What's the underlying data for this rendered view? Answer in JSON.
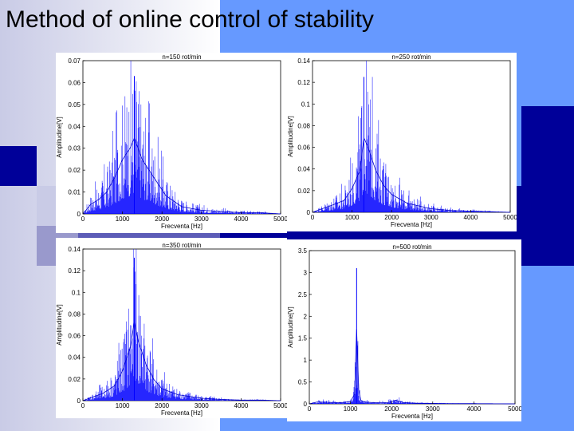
{
  "slide": {
    "title": "Method of online control of stability"
  },
  "chart_data": [
    {
      "type": "line",
      "title": "n=150 rot/min",
      "xlabel": "Frecventa [Hz]",
      "ylabel": "Amplitudine[V]",
      "xlim": [
        0,
        5000
      ],
      "ylim": [
        0,
        0.07
      ],
      "xticks": [
        "0",
        "1000",
        "2000",
        "3000",
        "4000",
        "5000"
      ],
      "yticks": [
        "0",
        "0.01",
        "0.02",
        "0.03",
        "0.04",
        "0.05",
        "0.06",
        "0.07"
      ],
      "series": [
        {
          "color": "#0000ff",
          "x": [
            0,
            200,
            400,
            600,
            800,
            1000,
            1200,
            1300,
            1500,
            1800,
            2100,
            2500,
            3000,
            3500,
            4000,
            4500,
            5000
          ],
          "y": [
            0.0,
            0.008,
            0.012,
            0.018,
            0.03,
            0.045,
            0.055,
            0.063,
            0.045,
            0.03,
            0.015,
            0.006,
            0.003,
            0.002,
            0.001,
            0.001,
            0.0
          ]
        }
      ],
      "grid": false
    },
    {
      "type": "line",
      "title": "n=250 rot/min",
      "xlabel": "Frecventa [Hz]",
      "ylabel": "Amplitudine[V]",
      "xlim": [
        0,
        5000
      ],
      "ylim": [
        0,
        0.14
      ],
      "xticks": [
        "0",
        "1000",
        "2000",
        "3000",
        "4000",
        "5000"
      ],
      "yticks": [
        "0",
        "0.02",
        "0.04",
        "0.06",
        "0.08",
        "0.1",
        "0.12",
        "0.14"
      ],
      "series": [
        {
          "color": "#0000ff",
          "x": [
            0,
            200,
            500,
            800,
            1000,
            1200,
            1300,
            1400,
            1600,
            1800,
            2000,
            2400,
            3000,
            3500,
            4000,
            4500,
            5000
          ],
          "y": [
            0.0,
            0.005,
            0.012,
            0.02,
            0.04,
            0.07,
            0.125,
            0.11,
            0.07,
            0.045,
            0.03,
            0.015,
            0.006,
            0.003,
            0.002,
            0.001,
            0.0
          ]
        }
      ],
      "grid": false
    },
    {
      "type": "line",
      "title": "n=350 rot/min",
      "xlabel": "Frecventa [Hz]",
      "ylabel": "Amplitudine[V]",
      "xlim": [
        0,
        5000
      ],
      "ylim": [
        0,
        0.14
      ],
      "xticks": [
        "0",
        "1000",
        "2000",
        "3000",
        "4000",
        "5000"
      ],
      "yticks": [
        "0",
        "0.02",
        "0.04",
        "0.06",
        "0.08",
        "0.1",
        "0.12",
        "0.14"
      ],
      "series": [
        {
          "color": "#0000ff",
          "x": [
            0,
            200,
            500,
            800,
            1000,
            1200,
            1300,
            1400,
            1600,
            1800,
            2000,
            2400,
            3000,
            3500,
            4000,
            4500,
            5000
          ],
          "y": [
            0.0,
            0.005,
            0.012,
            0.025,
            0.05,
            0.09,
            0.132,
            0.1,
            0.06,
            0.035,
            0.02,
            0.01,
            0.004,
            0.002,
            0.001,
            0.001,
            0.0
          ]
        }
      ],
      "grid": false
    },
    {
      "type": "line",
      "title": "n=500 rot/min",
      "xlabel": "Frecventa [Hz]",
      "ylabel": "Amplitudine[V]",
      "xlim": [
        0,
        5000
      ],
      "ylim": [
        0,
        3.5
      ],
      "xticks": [
        "0",
        "1000",
        "2000",
        "3000",
        "4000",
        "5000"
      ],
      "yticks": [
        "0",
        "0.5",
        "1",
        "1.5",
        "2",
        "2.5",
        "3",
        "3.5"
      ],
      "series": [
        {
          "color": "#0000ff",
          "x": [
            0,
            200,
            500,
            800,
            1000,
            1100,
            1150,
            1200,
            1250,
            1350,
            1600,
            1900,
            2100,
            2300,
            2600,
            3000,
            3500,
            4000,
            5000
          ],
          "y": [
            0.0,
            0.08,
            0.06,
            0.05,
            0.1,
            0.4,
            3.1,
            0.6,
            0.15,
            0.07,
            0.05,
            0.05,
            0.15,
            0.05,
            0.03,
            0.02,
            0.01,
            0.01,
            0.0
          ]
        }
      ],
      "grid": false
    }
  ]
}
